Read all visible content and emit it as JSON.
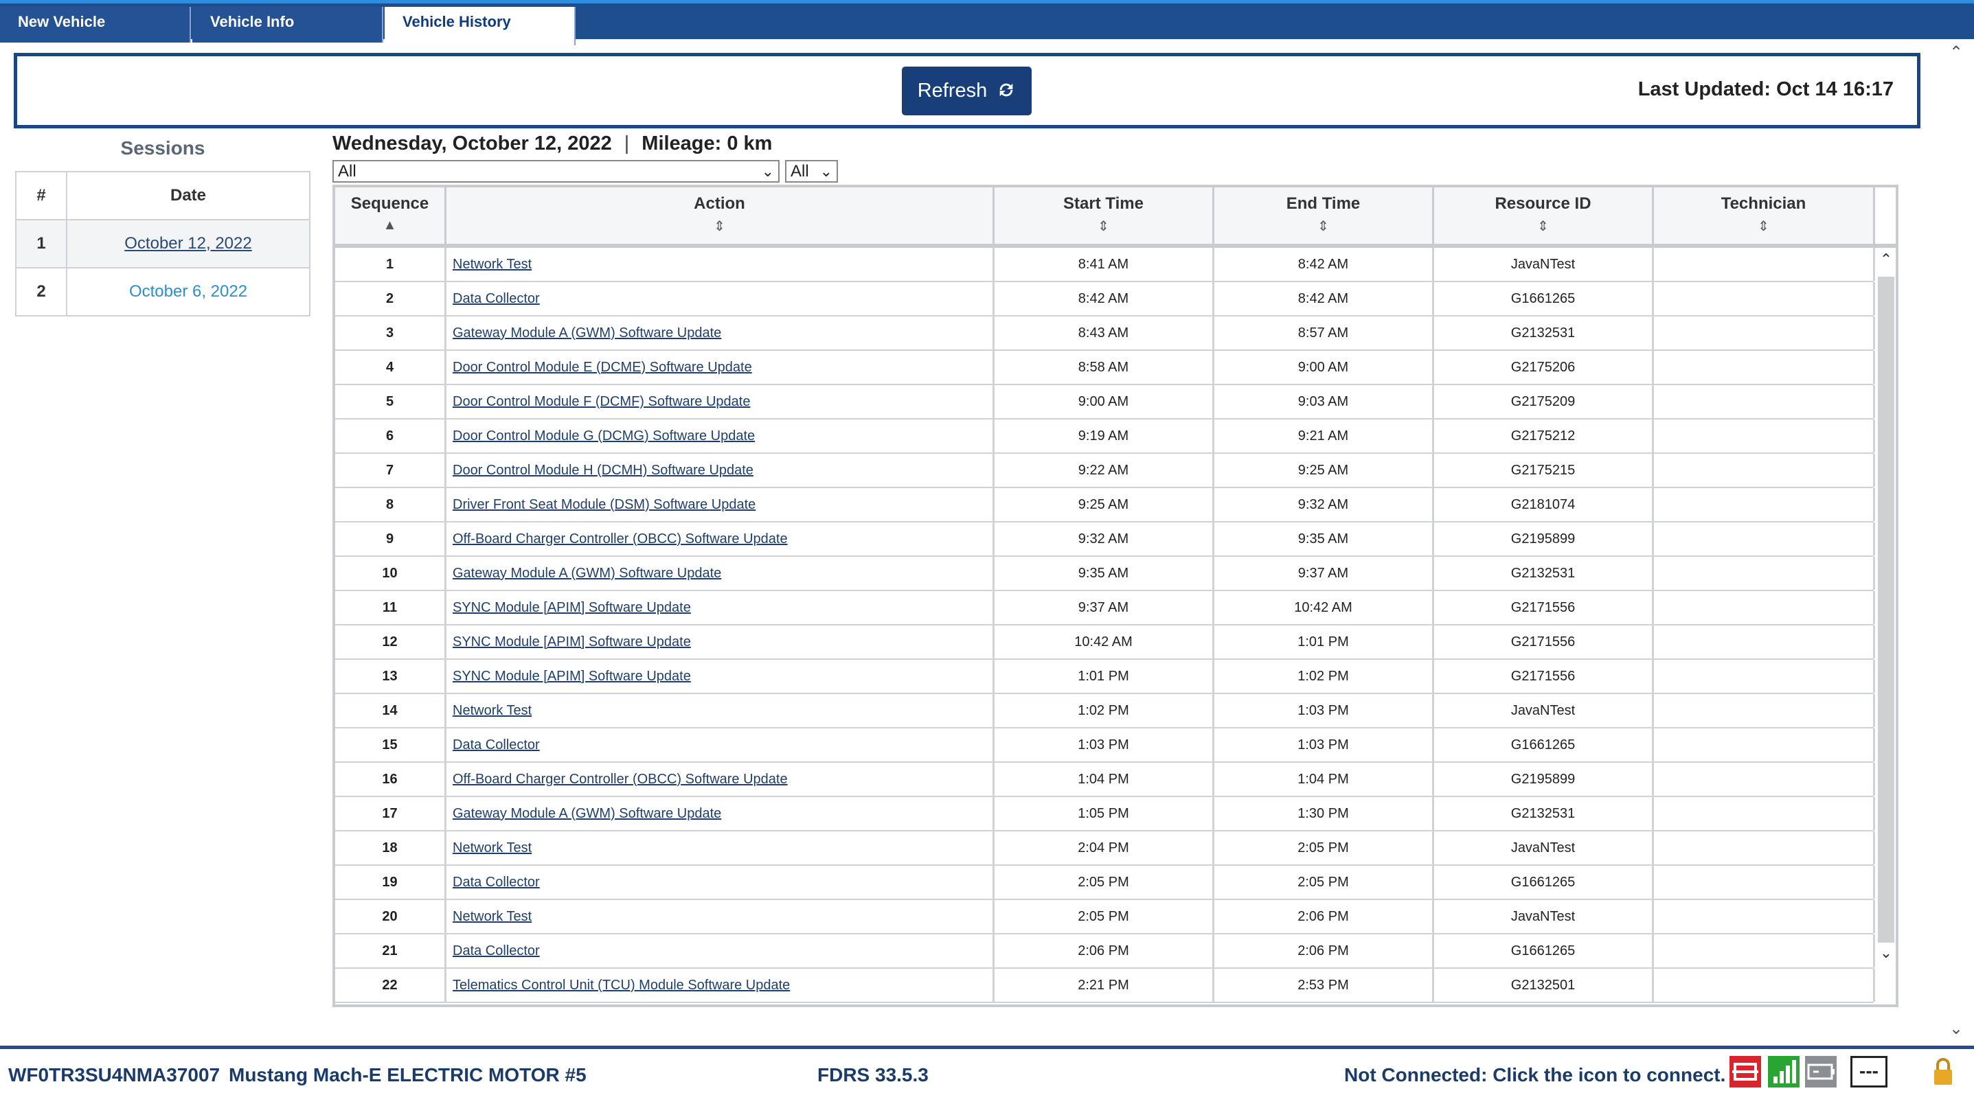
{
  "tabs": [
    {
      "label": "New Vehicle",
      "active": false
    },
    {
      "label": "Vehicle Info",
      "active": false
    },
    {
      "label": "Vehicle History",
      "active": true
    }
  ],
  "header": {
    "refresh_label": "Refresh",
    "last_updated": "Last Updated: Oct 14 16:17"
  },
  "sessions": {
    "title": "Sessions",
    "columns": [
      "#",
      "Date"
    ],
    "rows": [
      {
        "num": "1",
        "date": "October 12, 2022"
      },
      {
        "num": "2",
        "date": "October 6, 2022"
      }
    ]
  },
  "day": {
    "date": "Wednesday, October 12, 2022",
    "separator": "|",
    "mileage": "Mileage: 0 km"
  },
  "filters": {
    "action_filter": "All",
    "status_filter": "All"
  },
  "table": {
    "columns": [
      "Sequence",
      "Action",
      "Start Time",
      "End Time",
      "Resource ID",
      "Technician"
    ],
    "rows": [
      {
        "seq": "1",
        "action": "Network Test",
        "start": "8:41 AM",
        "end": "8:42 AM",
        "resource": "JavaNTest",
        "tech": ""
      },
      {
        "seq": "2",
        "action": "Data Collector",
        "start": "8:42 AM",
        "end": "8:42 AM",
        "resource": "G1661265",
        "tech": ""
      },
      {
        "seq": "3",
        "action": "Gateway Module A (GWM) Software Update",
        "start": "8:43 AM",
        "end": "8:57 AM",
        "resource": "G2132531",
        "tech": ""
      },
      {
        "seq": "4",
        "action": "Door Control Module E (DCME) Software Update",
        "start": "8:58 AM",
        "end": "9:00 AM",
        "resource": "G2175206",
        "tech": ""
      },
      {
        "seq": "5",
        "action": "Door Control Module F (DCMF) Software Update",
        "start": "9:00 AM",
        "end": "9:03 AM",
        "resource": "G2175209",
        "tech": ""
      },
      {
        "seq": "6",
        "action": "Door Control Module G (DCMG) Software Update",
        "start": "9:19 AM",
        "end": "9:21 AM",
        "resource": "G2175212",
        "tech": ""
      },
      {
        "seq": "7",
        "action": "Door Control Module H (DCMH) Software Update",
        "start": "9:22 AM",
        "end": "9:25 AM",
        "resource": "G2175215",
        "tech": ""
      },
      {
        "seq": "8",
        "action": "Driver Front Seat Module (DSM) Software Update",
        "start": "9:25 AM",
        "end": "9:32 AM",
        "resource": "G2181074",
        "tech": ""
      },
      {
        "seq": "9",
        "action": "Off-Board Charger Controller (OBCC) Software Update",
        "start": "9:32 AM",
        "end": "9:35 AM",
        "resource": "G2195899",
        "tech": ""
      },
      {
        "seq": "10",
        "action": "Gateway Module A (GWM) Software Update",
        "start": "9:35 AM",
        "end": "9:37 AM",
        "resource": "G2132531",
        "tech": ""
      },
      {
        "seq": "11",
        "action": "SYNC Module [APIM] Software Update",
        "start": "9:37 AM",
        "end": "10:42 AM",
        "resource": "G2171556",
        "tech": ""
      },
      {
        "seq": "12",
        "action": "SYNC Module [APIM] Software Update",
        "start": "10:42 AM",
        "end": "1:01 PM",
        "resource": "G2171556",
        "tech": ""
      },
      {
        "seq": "13",
        "action": "SYNC Module [APIM] Software Update",
        "start": "1:01 PM",
        "end": "1:02 PM",
        "resource": "G2171556",
        "tech": ""
      },
      {
        "seq": "14",
        "action": "Network Test",
        "start": "1:02 PM",
        "end": "1:03 PM",
        "resource": "JavaNTest",
        "tech": ""
      },
      {
        "seq": "15",
        "action": "Data Collector",
        "start": "1:03 PM",
        "end": "1:03 PM",
        "resource": "G1661265",
        "tech": ""
      },
      {
        "seq": "16",
        "action": "Off-Board Charger Controller (OBCC) Software Update",
        "start": "1:04 PM",
        "end": "1:04 PM",
        "resource": "G2195899",
        "tech": ""
      },
      {
        "seq": "17",
        "action": "Gateway Module A (GWM) Software Update",
        "start": "1:05 PM",
        "end": "1:30 PM",
        "resource": "G2132531",
        "tech": ""
      },
      {
        "seq": "18",
        "action": "Network Test",
        "start": "2:04 PM",
        "end": "2:05 PM",
        "resource": "JavaNTest",
        "tech": ""
      },
      {
        "seq": "19",
        "action": "Data Collector",
        "start": "2:05 PM",
        "end": "2:05 PM",
        "resource": "G1661265",
        "tech": ""
      },
      {
        "seq": "20",
        "action": "Network Test",
        "start": "2:05 PM",
        "end": "2:06 PM",
        "resource": "JavaNTest",
        "tech": ""
      },
      {
        "seq": "21",
        "action": "Data Collector",
        "start": "2:06 PM",
        "end": "2:06 PM",
        "resource": "G1661265",
        "tech": ""
      },
      {
        "seq": "22",
        "action": "Telematics Control Unit (TCU) Module Software Update",
        "start": "2:21 PM",
        "end": "2:53 PM",
        "resource": "G2132501",
        "tech": ""
      }
    ]
  },
  "footer": {
    "vin": "WF0TR3SU4NMA37007",
    "model": "Mustang Mach-E ELECTRIC MOTOR #5",
    "fdrs_version": "FDRS 33.5.3",
    "connection_status": "Not Connected: Click the icon to connect.",
    "dash_label": "---"
  },
  "icons": {
    "refresh": "refresh-icon",
    "sort_asc": "sort-ascending-icon",
    "sort_both": "sort-icon",
    "vci_disconnected": "vci-disconnected-icon",
    "signal": "signal-strength-icon",
    "battery": "battery-icon",
    "lock": "lock-icon"
  },
  "colors": {
    "brand_blue": "#1f4e8f",
    "refresh_button": "#183f7a",
    "link": "#1f3f6a",
    "session_link_secondary": "#2c8fc9",
    "status_red": "#d9242b",
    "status_green": "#2aa534"
  }
}
